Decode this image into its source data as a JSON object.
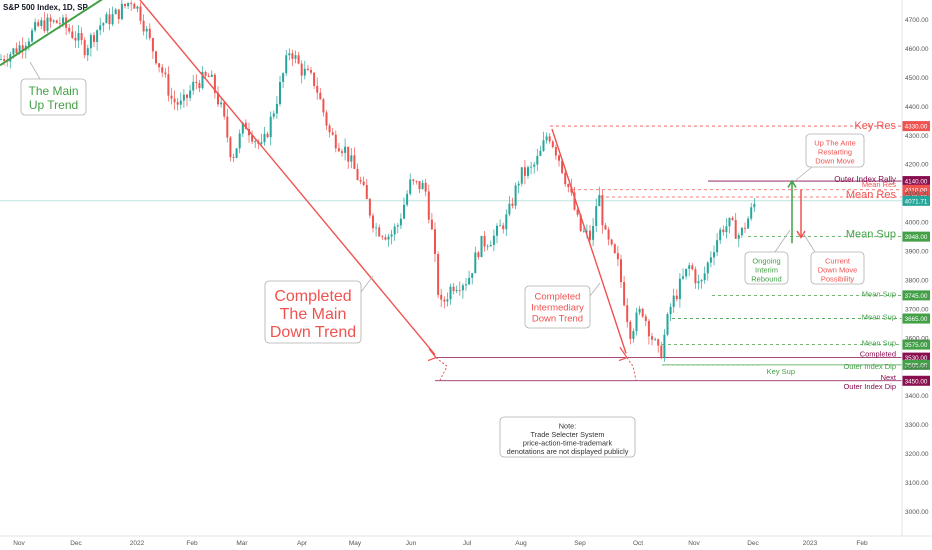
{
  "chart_data": {
    "type": "candlestick",
    "title": "S&P 500 Index, 1D, SP",
    "x_ticks": [
      "Nov",
      "Dec",
      "2022",
      "Feb",
      "Mar",
      "Apr",
      "May",
      "Jun",
      "Jul",
      "Aug",
      "Sep",
      "Oct",
      "Nov",
      "Dec",
      "2023",
      "Feb"
    ],
    "y_ticks": [
      "4700.00",
      "4600.00",
      "4500.00",
      "4400.00",
      "4300.00",
      "4200.00",
      "4100.00",
      "4000.00",
      "3900.00",
      "3800.00",
      "3700.00",
      "3600.00",
      "3500.00",
      "3400.00",
      "3300.00",
      "3200.00",
      "3100.00",
      "3000.00"
    ],
    "ylim": [
      2920,
      4750
    ],
    "levels": [
      {
        "label": "Key Res",
        "value": 4330.0,
        "badge": "4330.00",
        "color": "#ef5350"
      },
      {
        "label": "Outer Index Rally",
        "value": 4140.0,
        "badge": "4140.00",
        "color": "#880e4f"
      },
      {
        "label": "Mean Res",
        "value": 4110.0,
        "badge": "4110.00",
        "color": "#ef5350"
      },
      {
        "label": "Mean Res",
        "value": 4085.0,
        "badge": "4085.00",
        "color": "#ef5350"
      },
      {
        "label": "",
        "value": 4071.71,
        "badge": "4071.71",
        "color": "#26a69a"
      },
      {
        "label": "Mean Sup",
        "value": 3948.0,
        "badge": "3948.00",
        "color": "#43a047"
      },
      {
        "label": "Mean Sup",
        "value": 3745.0,
        "badge": "3745.00",
        "color": "#43a047"
      },
      {
        "label": "Mean Sup",
        "value": 3665.0,
        "badge": "3665.00",
        "color": "#43a047"
      },
      {
        "label": "Mean Sup",
        "value": 3575.0,
        "badge": "3575.00",
        "color": "#43a047"
      },
      {
        "label": "Completed",
        "value": 3530.0,
        "badge": "3530.00",
        "color": "#880e4f"
      },
      {
        "label": "Outer Index Dip",
        "value": 3505.0,
        "badge": "3505.00",
        "color": "#43a047"
      },
      {
        "label": "Key Sup",
        "value": 3505.0,
        "badge": "",
        "color": "#43a047"
      },
      {
        "label": "Next",
        "value": 3450.0,
        "badge": "3450.00",
        "color": "#880e4f"
      },
      {
        "label": "Outer Index Dip",
        "value": 3450.0,
        "badge": "",
        "color": "#880e4f"
      }
    ],
    "annotations": {
      "main_up_trend": "The Main\nUp Trend",
      "completed_main_down": "Completed\nThe Main\nDown Trend",
      "completed_intermediary": "Completed\nIntermediary\nDown Trend",
      "up_the_ante": "Up The Ante\nRestarting\nDown Move",
      "ongoing_rebound": "Ongoing\nInterim\nRebound",
      "current_down_move": "Current\nDown Move\nPossibility",
      "note": "Note:\nTrade Selecter System\nprice-action-time-trademark\ndenotations are not displayed publicly"
    },
    "grid": false
  }
}
